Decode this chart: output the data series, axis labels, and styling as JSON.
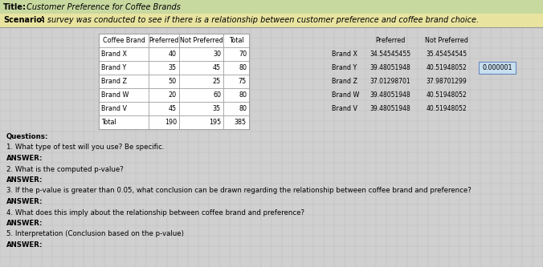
{
  "title_label": "Title:",
  "title_text": " Customer Preference for Coffee Brands",
  "scenario_label": "Scenario:",
  "scenario_text": " A survey was conducted to see if there is a relationship between customer preference and coffee brand choice.",
  "left_table": {
    "headers": [
      "Coffee Brand",
      "Preferred",
      "Not Preferred",
      "Total"
    ],
    "rows": [
      [
        "Brand X",
        "40",
        "30",
        "70"
      ],
      [
        "Brand Y",
        "35",
        "45",
        "80"
      ],
      [
        "Brand Z",
        "50",
        "25",
        "75"
      ],
      [
        "Brand W",
        "20",
        "60",
        "80"
      ],
      [
        "Brand V",
        "45",
        "35",
        "80"
      ],
      [
        "Total",
        "190",
        "195",
        "385"
      ]
    ]
  },
  "right_table": {
    "headers": [
      "",
      "Preferred",
      "Not Preferred"
    ],
    "rows": [
      [
        "Brand X",
        "34.54545455",
        "35.45454545"
      ],
      [
        "Brand Y",
        "39.48051948",
        "40.51948052"
      ],
      [
        "Brand Z",
        "37.01298701",
        "37.98701299"
      ],
      [
        "Brand W",
        "39.48051948",
        "40.51948052"
      ],
      [
        "Brand V",
        "39.48051948",
        "40.51948052"
      ]
    ]
  },
  "pvalue_box": "0.000001",
  "questions": [
    [
      "bold",
      "Questions:"
    ],
    [
      "normal",
      "1. What type of test will you use? Be specific."
    ],
    [
      "bold",
      "ANSWER:"
    ],
    [
      "normal",
      "2. What is the computed p‐value?"
    ],
    [
      "bold",
      "ANSWER:"
    ],
    [
      "normal",
      "3. If the p‐value is greater than 0.05, what conclusion can be drawn regarding the relationship between coffee brand and preference?"
    ],
    [
      "bold",
      "ANSWER:"
    ],
    [
      "normal",
      "4. What does this imply about the relationship between coffee brand and preference?"
    ],
    [
      "bold",
      "ANSWER:"
    ],
    [
      "normal",
      "5. Interpretation (Conclusion based on the p‐value)"
    ],
    [
      "bold",
      "ANSWER:"
    ]
  ],
  "title_bg": "#c8d9a0",
  "scenario_bg": "#e8e4a0",
  "bg_color": "#d0d0d0",
  "grid_color": "#bbbbbb",
  "table_bg": "#ffffff",
  "table_border": "#888888",
  "pvalue_box_color": "#c8dff0",
  "pvalue_border_color": "#6688bb"
}
